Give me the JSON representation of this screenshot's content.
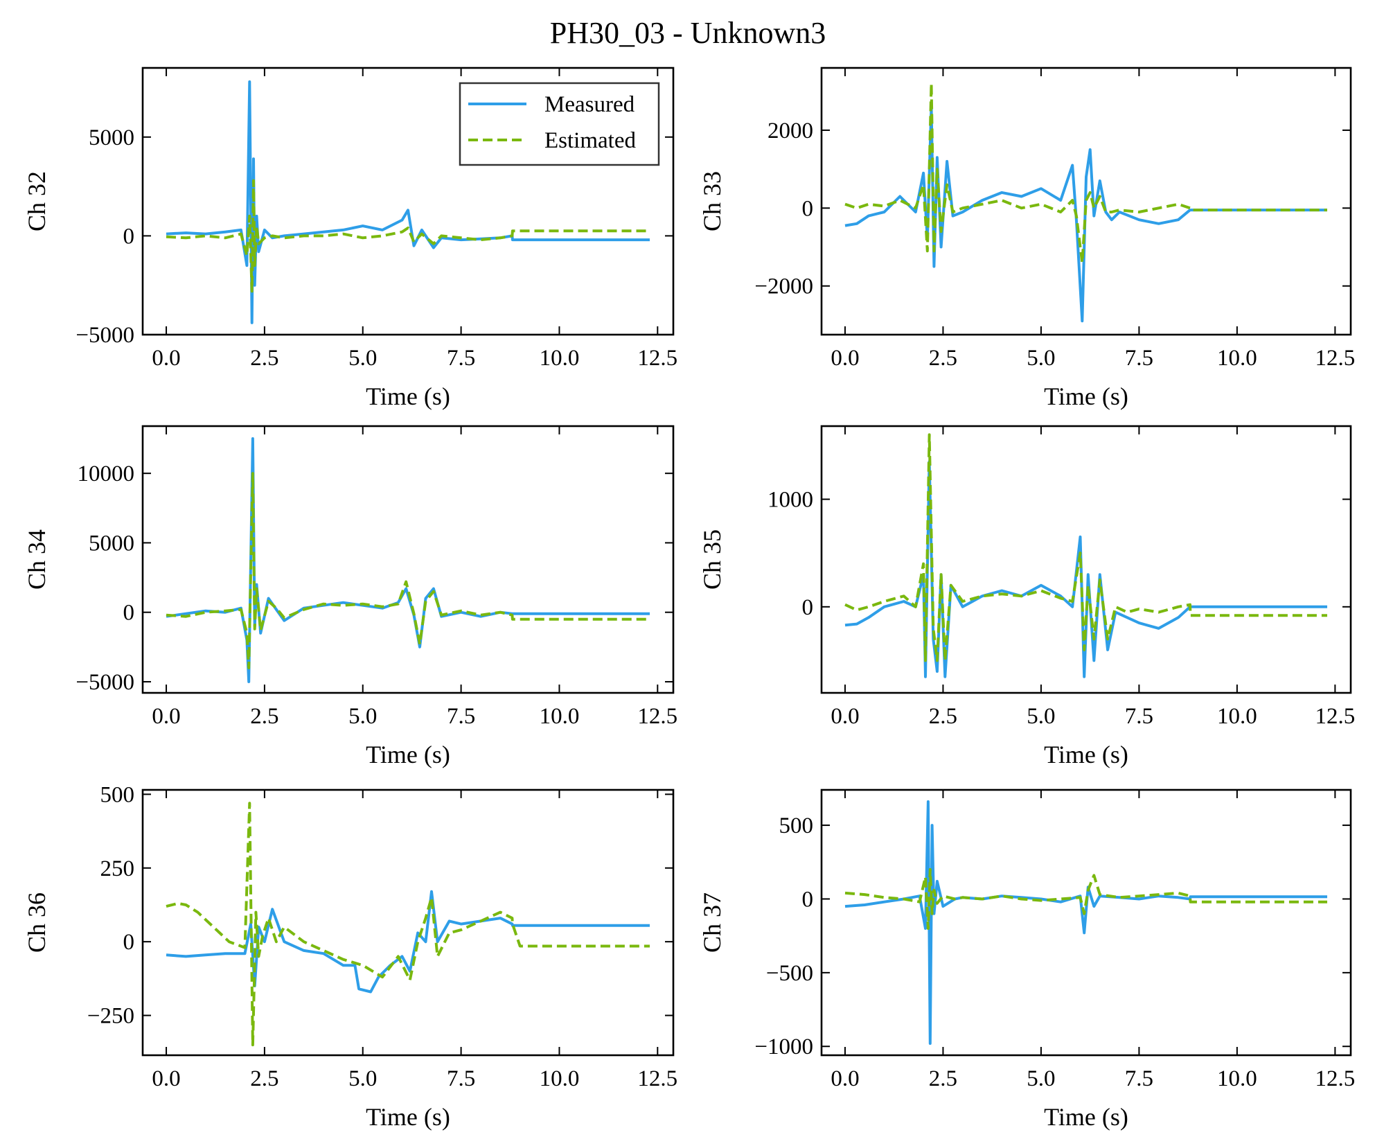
{
  "figure": {
    "title": "PH30_03 - Unknown3",
    "legend": {
      "placement": "upper right of first subplot",
      "entries": [
        "Measured",
        "Estimated"
      ]
    }
  },
  "colors": {
    "measured": "#2e9ee8",
    "estimated": "#7ab80e"
  },
  "chart_data": [
    {
      "type": "line",
      "title": "",
      "xlabel": "Time (s)",
      "ylabel": "Ch 32",
      "xlim": [
        -0.6,
        12.9
      ],
      "ylim": [
        -5000,
        8500
      ],
      "xticks": [
        0,
        2.5,
        5,
        7.5,
        10,
        12.5
      ],
      "xtick_labels": [
        "0.0",
        "2.5",
        "5.0",
        "7.5",
        "10.0",
        "12.5"
      ],
      "yticks": [
        -5000,
        0,
        5000
      ],
      "ytick_labels": [
        "−5000",
        "0",
        "5000"
      ],
      "series": [
        {
          "name": "Measured",
          "style": "solid",
          "x": [
            0,
            0.5,
            1.0,
            1.5,
            1.9,
            2.05,
            2.12,
            2.18,
            2.22,
            2.25,
            2.3,
            2.35,
            2.5,
            2.7,
            3.0,
            3.5,
            4.0,
            4.5,
            5.0,
            5.5,
            6.0,
            6.15,
            6.3,
            6.5,
            6.8,
            7.0,
            7.5,
            8.0,
            8.5,
            8.8,
            8.81,
            12.3
          ],
          "y": [
            100,
            150,
            100,
            200,
            300,
            -1500,
            7800,
            -4400,
            3900,
            -2500,
            1000,
            -800,
            300,
            -100,
            0,
            100,
            200,
            300,
            500,
            300,
            800,
            1300,
            -500,
            300,
            -600,
            -100,
            -200,
            -150,
            -100,
            0,
            -200,
            -200
          ]
        },
        {
          "name": "Estimated",
          "style": "dashed",
          "x": [
            0,
            0.5,
            1.0,
            1.5,
            1.9,
            2.05,
            2.12,
            2.18,
            2.22,
            2.25,
            2.3,
            2.35,
            2.5,
            2.7,
            3.0,
            3.5,
            4.0,
            4.5,
            5.0,
            5.5,
            6.0,
            6.15,
            6.3,
            6.5,
            6.8,
            7.0,
            7.5,
            8.0,
            8.5,
            8.8,
            8.81,
            12.3
          ],
          "y": [
            -50,
            -100,
            0,
            -100,
            100,
            -1000,
            1000,
            -2800,
            2800,
            -1500,
            500,
            -400,
            -100,
            0,
            -100,
            0,
            0,
            100,
            -100,
            0,
            200,
            400,
            -300,
            100,
            -400,
            0,
            -100,
            -200,
            -100,
            0,
            250,
            250
          ]
        }
      ]
    },
    {
      "type": "line",
      "title": "",
      "xlabel": "Time (s)",
      "ylabel": "Ch 33",
      "xlim": [
        -0.6,
        12.9
      ],
      "ylim": [
        -3250,
        3600
      ],
      "xticks": [
        0,
        2.5,
        5,
        7.5,
        10,
        12.5
      ],
      "xtick_labels": [
        "0.0",
        "2.5",
        "5.0",
        "7.5",
        "10.0",
        "12.5"
      ],
      "yticks": [
        -2000,
        0,
        2000
      ],
      "ytick_labels": [
        "−2000",
        "0",
        "2000"
      ],
      "series": [
        {
          "name": "Measured",
          "style": "solid",
          "x": [
            0,
            0.3,
            0.6,
            1.0,
            1.4,
            1.8,
            2.0,
            2.1,
            2.2,
            2.27,
            2.35,
            2.45,
            2.6,
            2.75,
            3.0,
            3.5,
            4.0,
            4.5,
            5.0,
            5.5,
            5.8,
            5.9,
            6.05,
            6.15,
            6.25,
            6.35,
            6.5,
            6.65,
            6.8,
            7.0,
            7.5,
            8.0,
            8.5,
            8.8,
            8.81,
            12.3
          ],
          "y": [
            -450,
            -400,
            -200,
            -100,
            300,
            -100,
            900,
            -800,
            2600,
            -1500,
            1300,
            -1000,
            1200,
            -200,
            -100,
            200,
            400,
            300,
            500,
            200,
            1100,
            -300,
            -2900,
            800,
            1500,
            -200,
            700,
            -100,
            -300,
            -100,
            -300,
            -400,
            -300,
            -50,
            -50,
            -50
          ]
        },
        {
          "name": "Estimated",
          "style": "dashed",
          "x": [
            0,
            0.3,
            0.6,
            1.0,
            1.4,
            1.8,
            2.0,
            2.1,
            2.2,
            2.27,
            2.35,
            2.45,
            2.6,
            2.75,
            3.0,
            3.5,
            4.0,
            4.5,
            5.0,
            5.5,
            5.8,
            5.9,
            6.05,
            6.15,
            6.25,
            6.35,
            6.5,
            6.65,
            6.8,
            7.0,
            7.5,
            8.0,
            8.5,
            8.8,
            8.81,
            12.3
          ],
          "y": [
            100,
            0,
            100,
            50,
            200,
            0,
            600,
            -1100,
            3200,
            -1100,
            1000,
            -600,
            600,
            -100,
            0,
            100,
            200,
            0,
            100,
            -100,
            200,
            -200,
            -1400,
            200,
            400,
            0,
            300,
            -100,
            -100,
            -50,
            -100,
            0,
            100,
            0,
            -50,
            -50
          ]
        }
      ]
    },
    {
      "type": "line",
      "title": "",
      "xlabel": "Time (s)",
      "ylabel": "Ch 34",
      "xlim": [
        -0.6,
        12.9
      ],
      "ylim": [
        -5800,
        13400
      ],
      "xticks": [
        0,
        2.5,
        5,
        7.5,
        10,
        12.5
      ],
      "xtick_labels": [
        "0.0",
        "2.5",
        "5.0",
        "7.5",
        "10.0",
        "12.5"
      ],
      "yticks": [
        -5000,
        0,
        5000,
        10000
      ],
      "ytick_labels": [
        "−5000",
        "0",
        "5000",
        "10000"
      ],
      "series": [
        {
          "name": "Measured",
          "style": "solid",
          "x": [
            0,
            0.5,
            1.0,
            1.5,
            1.9,
            2.05,
            2.1,
            2.2,
            2.25,
            2.3,
            2.4,
            2.6,
            2.8,
            3.0,
            3.5,
            4.0,
            4.5,
            5.0,
            5.5,
            5.9,
            6.1,
            6.3,
            6.45,
            6.6,
            6.8,
            7.0,
            7.5,
            8.0,
            8.5,
            8.8,
            8.81,
            12.3
          ],
          "y": [
            -300,
            -100,
            100,
            0,
            300,
            -2000,
            -5000,
            12500,
            -1000,
            2000,
            -1500,
            1000,
            200,
            -600,
            300,
            500,
            700,
            500,
            300,
            700,
            1700,
            -200,
            -2500,
            1000,
            1700,
            -300,
            0,
            -300,
            0,
            -100,
            -100,
            -100
          ]
        },
        {
          "name": "Estimated",
          "style": "dashed",
          "x": [
            0,
            0.5,
            1.0,
            1.5,
            1.9,
            2.05,
            2.1,
            2.2,
            2.25,
            2.3,
            2.4,
            2.6,
            2.8,
            3.0,
            3.5,
            4.0,
            4.5,
            5.0,
            5.5,
            5.9,
            6.1,
            6.3,
            6.45,
            6.6,
            6.8,
            7.0,
            7.5,
            8.0,
            8.5,
            8.8,
            8.81,
            12.3
          ],
          "y": [
            -200,
            -300,
            0,
            100,
            200,
            -1500,
            -4000,
            10000,
            -1200,
            1700,
            -1300,
            800,
            300,
            -400,
            200,
            600,
            500,
            600,
            400,
            600,
            2200,
            -100,
            -2300,
            800,
            1500,
            -200,
            100,
            -200,
            0,
            -200,
            -500,
            -500
          ]
        }
      ]
    },
    {
      "type": "line",
      "title": "",
      "xlabel": "Time (s)",
      "ylabel": "Ch 35",
      "xlim": [
        -0.6,
        12.9
      ],
      "ylim": [
        -800,
        1680
      ],
      "xticks": [
        0,
        2.5,
        5,
        7.5,
        10,
        12.5
      ],
      "xtick_labels": [
        "0.0",
        "2.5",
        "5.0",
        "7.5",
        "10.0",
        "12.5"
      ],
      "yticks": [
        0,
        1000
      ],
      "ytick_labels": [
        "0",
        "1000"
      ],
      "series": [
        {
          "name": "Measured",
          "style": "solid",
          "x": [
            0,
            0.3,
            0.6,
            1.0,
            1.5,
            1.8,
            2.0,
            2.05,
            2.15,
            2.25,
            2.35,
            2.45,
            2.55,
            2.7,
            3.0,
            3.5,
            4.0,
            4.5,
            5.0,
            5.5,
            5.8,
            6.0,
            6.1,
            6.2,
            6.35,
            6.5,
            6.7,
            6.9,
            7.2,
            7.5,
            8.0,
            8.5,
            8.8,
            8.81,
            12.3
          ],
          "y": [
            -170,
            -160,
            -100,
            0,
            50,
            0,
            300,
            -650,
            1350,
            -300,
            -600,
            300,
            -650,
            200,
            0,
            100,
            150,
            100,
            200,
            100,
            0,
            650,
            -650,
            300,
            -500,
            300,
            -400,
            -50,
            -100,
            -150,
            -200,
            -100,
            0,
            0,
            0
          ]
        },
        {
          "name": "Estimated",
          "style": "dashed",
          "x": [
            0,
            0.3,
            0.6,
            1.0,
            1.5,
            1.8,
            2.0,
            2.05,
            2.15,
            2.25,
            2.35,
            2.45,
            2.55,
            2.7,
            3.0,
            3.5,
            4.0,
            4.5,
            5.0,
            5.5,
            5.8,
            6.0,
            6.1,
            6.2,
            6.35,
            6.5,
            6.7,
            6.9,
            7.2,
            7.5,
            8.0,
            8.5,
            8.8,
            8.81,
            12.3
          ],
          "y": [
            20,
            -30,
            0,
            50,
            100,
            0,
            400,
            -500,
            1600,
            -200,
            -500,
            300,
            -500,
            200,
            50,
            100,
            120,
            100,
            150,
            80,
            50,
            500,
            -400,
            200,
            -300,
            250,
            -300,
            0,
            -50,
            -20,
            -50,
            0,
            20,
            -80,
            -80
          ]
        }
      ]
    },
    {
      "type": "line",
      "title": "",
      "xlabel": "Time (s)",
      "ylabel": "Ch 36",
      "xlim": [
        -0.6,
        12.9
      ],
      "ylim": [
        -385,
        515
      ],
      "xticks": [
        0,
        2.5,
        5,
        7.5,
        10,
        12.5
      ],
      "xtick_labels": [
        "0.0",
        "2.5",
        "5.0",
        "7.5",
        "10.0",
        "12.5"
      ],
      "yticks": [
        -250,
        0,
        250,
        500
      ],
      "ytick_labels": [
        "−250",
        "0",
        "250",
        "500"
      ],
      "series": [
        {
          "name": "Measured",
          "style": "solid",
          "x": [
            0,
            0.5,
            1.0,
            1.5,
            2.0,
            2.15,
            2.25,
            2.35,
            2.5,
            2.7,
            3.0,
            3.5,
            4.0,
            4.5,
            4.8,
            4.9,
            5.2,
            5.4,
            5.7,
            6.0,
            6.2,
            6.4,
            6.6,
            6.75,
            6.9,
            7.2,
            7.5,
            8.0,
            8.5,
            8.8,
            8.81,
            12.3
          ],
          "y": [
            -45,
            -50,
            -45,
            -40,
            -40,
            60,
            -150,
            50,
            0,
            110,
            0,
            -30,
            -40,
            -80,
            -80,
            -160,
            -170,
            -120,
            -80,
            -50,
            -100,
            30,
            0,
            170,
            0,
            70,
            60,
            70,
            80,
            60,
            55,
            55
          ]
        },
        {
          "name": "Estimated",
          "style": "dashed",
          "x": [
            0,
            0.3,
            0.5,
            0.8,
            1.2,
            1.6,
            2.0,
            2.12,
            2.2,
            2.28,
            2.35,
            2.45,
            2.6,
            2.8,
            3.0,
            3.5,
            4.0,
            4.5,
            5.0,
            5.5,
            5.9,
            6.2,
            6.4,
            6.6,
            6.75,
            6.9,
            7.2,
            7.5,
            8.0,
            8.5,
            8.8,
            8.81,
            9.0,
            12.3
          ],
          "y": [
            120,
            130,
            125,
            100,
            50,
            0,
            -20,
            470,
            -350,
            100,
            -50,
            20,
            80,
            0,
            50,
            0,
            -30,
            -60,
            -80,
            -120,
            -50,
            -130,
            0,
            80,
            150,
            -50,
            30,
            40,
            70,
            100,
            80,
            60,
            -15,
            -15
          ]
        }
      ]
    },
    {
      "type": "line",
      "title": "",
      "xlabel": "Time (s)",
      "ylabel": "Ch 37",
      "xlim": [
        -0.6,
        12.9
      ],
      "ylim": [
        -1060,
        740
      ],
      "xticks": [
        0,
        2.5,
        5,
        7.5,
        10,
        12.5
      ],
      "xtick_labels": [
        "0.0",
        "2.5",
        "5.0",
        "7.5",
        "10.0",
        "12.5"
      ],
      "yticks": [
        -1000,
        -500,
        0,
        500
      ],
      "ytick_labels": [
        "−1000",
        "−500",
        "0",
        "500"
      ],
      "series": [
        {
          "name": "Measured",
          "style": "solid",
          "x": [
            0,
            0.5,
            1.0,
            1.5,
            1.9,
            2.05,
            2.12,
            2.17,
            2.22,
            2.27,
            2.35,
            2.5,
            2.8,
            3.0,
            3.5,
            4.0,
            4.5,
            5.0,
            5.5,
            6.0,
            6.1,
            6.2,
            6.35,
            6.5,
            7.0,
            7.5,
            8.0,
            8.5,
            8.8,
            8.81,
            12.3
          ],
          "y": [
            -50,
            -40,
            -20,
            0,
            20,
            -200,
            660,
            -980,
            500,
            -100,
            120,
            -50,
            0,
            10,
            0,
            20,
            10,
            0,
            -20,
            20,
            -230,
            80,
            -50,
            20,
            10,
            0,
            20,
            10,
            0,
            15,
            15
          ]
        },
        {
          "name": "Estimated",
          "style": "dashed",
          "x": [
            0,
            0.5,
            1.0,
            1.5,
            1.9,
            2.05,
            2.12,
            2.17,
            2.22,
            2.27,
            2.35,
            2.5,
            2.8,
            3.0,
            3.5,
            4.0,
            4.5,
            5.0,
            5.5,
            6.0,
            6.1,
            6.2,
            6.35,
            6.5,
            7.0,
            7.5,
            8.0,
            8.5,
            8.8,
            8.81,
            12.3
          ],
          "y": [
            40,
            30,
            10,
            0,
            -20,
            150,
            -200,
            200,
            -100,
            60,
            -30,
            20,
            0,
            10,
            0,
            20,
            0,
            -10,
            0,
            10,
            -100,
            60,
            160,
            30,
            10,
            20,
            30,
            40,
            20,
            -20,
            -20
          ]
        }
      ]
    }
  ]
}
